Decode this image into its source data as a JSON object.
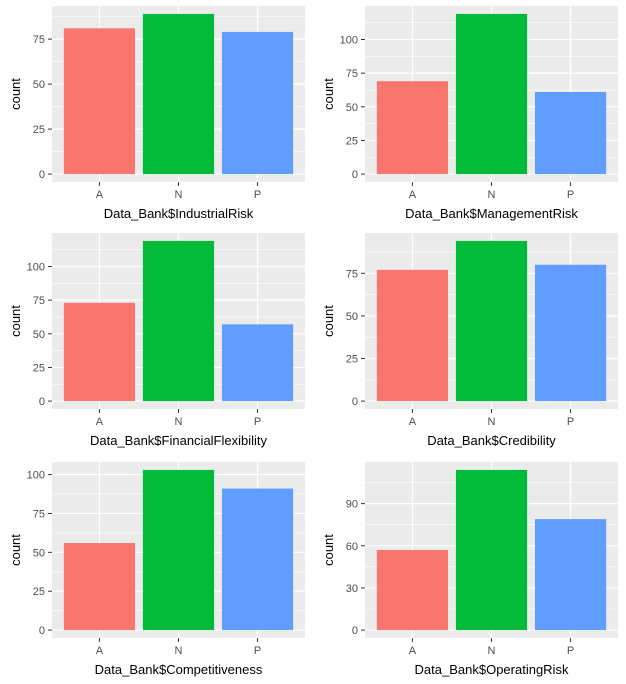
{
  "chart_data": [
    {
      "type": "bar",
      "xlabel": "Data_Bank$IndustrialRisk",
      "ylabel": "count",
      "categories": [
        "A",
        "N",
        "P"
      ],
      "values": [
        81,
        89,
        79
      ],
      "yticks": [
        0,
        25,
        50,
        75
      ],
      "ylim": [
        0,
        89
      ],
      "grid": true
    },
    {
      "type": "bar",
      "xlabel": "Data_Bank$ManagementRisk",
      "ylabel": "count",
      "categories": [
        "A",
        "N",
        "P"
      ],
      "values": [
        69,
        119,
        61
      ],
      "yticks": [
        0,
        25,
        50,
        75,
        100
      ],
      "ylim": [
        0,
        119
      ],
      "grid": true
    },
    {
      "type": "bar",
      "xlabel": "Data_Bank$FinancialFlexibility",
      "ylabel": "count",
      "categories": [
        "A",
        "N",
        "P"
      ],
      "values": [
        73,
        119,
        57
      ],
      "yticks": [
        0,
        25,
        50,
        75,
        100
      ],
      "ylim": [
        0,
        119
      ],
      "grid": true
    },
    {
      "type": "bar",
      "xlabel": "Data_Bank$Credibility",
      "ylabel": "count",
      "categories": [
        "A",
        "N",
        "P"
      ],
      "values": [
        77,
        94,
        80
      ],
      "yticks": [
        0,
        25,
        50,
        75
      ],
      "ylim": [
        0,
        94
      ],
      "grid": true
    },
    {
      "type": "bar",
      "xlabel": "Data_Bank$Competitiveness",
      "ylabel": "count",
      "categories": [
        "A",
        "N",
        "P"
      ],
      "values": [
        56,
        103,
        91
      ],
      "yticks": [
        0,
        25,
        50,
        75,
        100
      ],
      "ylim": [
        0,
        103
      ],
      "grid": true
    },
    {
      "type": "bar",
      "xlabel": "Data_Bank$OperatingRisk",
      "ylabel": "count",
      "categories": [
        "A",
        "N",
        "P"
      ],
      "values": [
        57,
        114,
        79
      ],
      "yticks": [
        0,
        30,
        60,
        90
      ],
      "ylim": [
        0,
        114
      ],
      "grid": true
    }
  ],
  "colors": {
    "A": "#F8766D",
    "N": "#00BA38",
    "P": "#619CFF",
    "panel_background": "#EBEBEB",
    "gridline": "#FFFFFF",
    "tick_text": "#4D4D4D",
    "tick_mark": "#333333"
  }
}
